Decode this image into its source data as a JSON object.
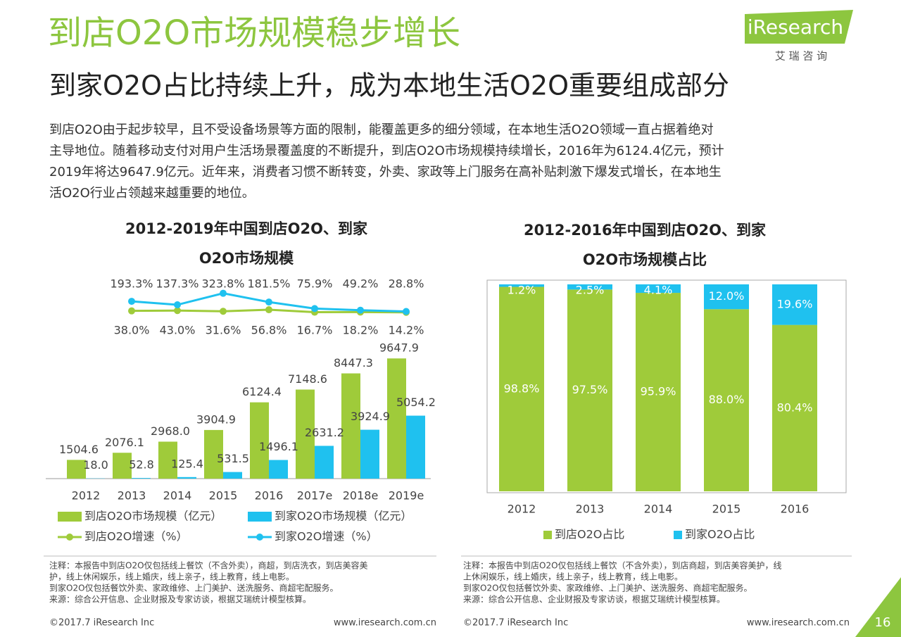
{
  "header": {
    "title": "到店O2O市场规模稳步增长",
    "subtitle": "到家O2O占比持续上升，成为本地生活O2O重要组成部分",
    "logo": "iResearch",
    "logo_sub": "艾 瑞 咨 询"
  },
  "body": [
    "到店O2O由于起步较早，且不受设备场景等方面的限制，能覆盖更多的细分领域，在本地生活O2O领域一直占据着绝对",
    "主导地位。随着移动支付对用户生活场景覆盖度的不断提升，到店O2O市场规模持续增长，2016年为6124.4亿元，预计",
    "2019年将达9647.9亿元。近年来，消费者习惯不断转变，外卖、家政等上门服务在高补贴刺激下爆发式增长，在本地生",
    "活O2O行业占领越来越重要的地位。"
  ],
  "chart_data": [
    {
      "type": "bar",
      "title": [
        "2012-2019年中国到店O2O、到家",
        "O2O市场规模"
      ],
      "categories": [
        "2012",
        "2013",
        "2014",
        "2015",
        "2016",
        "2017e",
        "2018e",
        "2019e"
      ],
      "ylim": [
        0,
        10000
      ],
      "y2lim": [
        0,
        400
      ],
      "series": [
        {
          "name": "到店O2O市场规模（亿元）",
          "color": "#9fcb3a",
          "values": [
            1504.6,
            2076.1,
            2968.0,
            3904.9,
            6124.4,
            7148.6,
            8447.3,
            9647.9
          ],
          "value_labels": [
            "1504.6",
            "2076.1",
            "2968.0",
            "3904.9",
            "6124.4",
            "7148.6",
            "8447.3",
            "9647.9"
          ]
        },
        {
          "name": "到家O2O市场规模（亿元）",
          "color": "#1fc1ef",
          "values": [
            18.0,
            52.8,
            125.4,
            531.5,
            1496.1,
            2631.2,
            3924.9,
            5054.2
          ],
          "value_labels": [
            "18.0",
            "52.8",
            "125.4",
            "531.5",
            "1496.1",
            "2631.2",
            "3924.9",
            "5054.2"
          ]
        },
        {
          "name": "到店O2O增速（%）",
          "type": "line",
          "axis": "y2",
          "color": "#9fcb3a",
          "values": [
            null,
            38.0,
            43.0,
            31.6,
            56.8,
            16.7,
            18.2,
            14.2
          ],
          "value_labels": [
            null,
            "38.0%",
            "43.0%",
            "31.6%",
            "56.8%",
            "16.7%",
            "18.2%",
            "14.2%"
          ]
        },
        {
          "name": "到家O2O增速（%）",
          "type": "line",
          "axis": "y2",
          "color": "#1fc1ef",
          "values": [
            null,
            193.3,
            137.3,
            323.8,
            181.5,
            75.9,
            49.2,
            28.8
          ],
          "value_labels": [
            null,
            "193.3%",
            "137.3%",
            "323.8%",
            "181.5%",
            "75.9%",
            "49.2%",
            "28.8%"
          ]
        }
      ]
    },
    {
      "type": "stacked_bar",
      "title": [
        "2012-2016年中国到店O2O、到家",
        "O2O市场规模占比"
      ],
      "categories": [
        "2012",
        "2013",
        "2014",
        "2015",
        "2016"
      ],
      "ylim": [
        0,
        100
      ],
      "series": [
        {
          "name": "到店O2O占比",
          "color": "#9fcb3a",
          "values": [
            98.8,
            97.5,
            95.9,
            88.0,
            80.4
          ],
          "value_labels": [
            "98.8%",
            "97.5%",
            "95.9%",
            "88.0%",
            "80.4%"
          ]
        },
        {
          "name": "到家O2O占比",
          "color": "#1fc1ef",
          "values": [
            1.2,
            2.5,
            4.1,
            12.0,
            19.6
          ],
          "value_labels": [
            "1.2%",
            "2.5%",
            "4.1%",
            "12.0%",
            "19.6%"
          ]
        }
      ]
    }
  ],
  "notes": [
    [
      "注释：本报告中到店O2O仅包括线上餐饮（不含外卖），商超，到店洗衣，到店美容美",
      "护，线上休闲娱乐，线上婚庆，线上亲子，线上教育，线上电影。",
      "到家O2O仅包括餐饮外卖、家政维修、上门美护、送洗服务、商超宅配服务。",
      "来源：综合公开信息、企业财报及专家访谈，根据艾瑞统计模型核算。"
    ],
    [
      "注释：本报告中到店O2O仅包括线上餐饮（不含外卖），到店商超，到店美容美护，线",
      "上休闲娱乐，线上婚庆，线上亲子，线上教育，线上电影。",
      "到家O2O仅包括餐饮外卖、家政维修、上门美护、送洗服务、商超宅配服务。",
      "来源：综合公开信息、企业财报及专家访谈，根据艾瑞统计模型核算。"
    ]
  ],
  "footer": {
    "copyright": "©2017.7 iResearch Inc",
    "url": "www.iresearch.com.cn",
    "page": "16"
  }
}
